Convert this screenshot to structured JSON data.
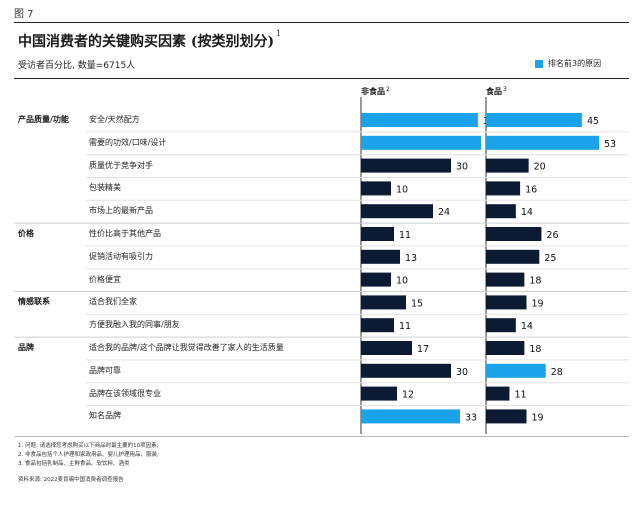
{
  "figure_label": "图 7",
  "title": "中国消费者的关键购买因素 (按类别划分)",
  "title_note": "1",
  "subtitle": "受访者百分比, 数量=6715人",
  "legend": {
    "label": "排名前3的原因",
    "color": "#1aa3e8"
  },
  "colors": {
    "highlight": "#1aa3e8",
    "default": "#0c1a33"
  },
  "chart_data": {
    "type": "bar",
    "orientation": "horizontal",
    "groups": [
      {
        "name": "产品质量/功能",
        "items": [
          {
            "label": "安全/天然配方",
            "nonfood": 39,
            "food": 45,
            "nonfood_top3": true,
            "food_top3": true
          },
          {
            "label": "需要的功效/口味/设计",
            "nonfood": 40,
            "food": 53,
            "nonfood_top3": true,
            "food_top3": true
          },
          {
            "label": "质量优于竞争对手",
            "nonfood": 30,
            "food": 20,
            "nonfood_top3": false,
            "food_top3": false
          },
          {
            "label": "包装精美",
            "nonfood": 10,
            "food": 16,
            "nonfood_top3": false,
            "food_top3": false
          },
          {
            "label": "市场上的最新产品",
            "nonfood": 24,
            "food": 14,
            "nonfood_top3": false,
            "food_top3": false
          }
        ]
      },
      {
        "name": "价格",
        "items": [
          {
            "label": "性价比高于其他产品",
            "nonfood": 11,
            "food": 26,
            "nonfood_top3": false,
            "food_top3": false
          },
          {
            "label": "促销活动有吸引力",
            "nonfood": 13,
            "food": 25,
            "nonfood_top3": false,
            "food_top3": false
          },
          {
            "label": "价格便宜",
            "nonfood": 10,
            "food": 18,
            "nonfood_top3": false,
            "food_top3": false
          }
        ]
      },
      {
        "name": "情感联系",
        "items": [
          {
            "label": "适合我们全家",
            "nonfood": 15,
            "food": 19,
            "nonfood_top3": false,
            "food_top3": false
          },
          {
            "label": "方便我融入我的同事/朋友",
            "nonfood": 11,
            "food": 14,
            "nonfood_top3": false,
            "food_top3": false
          }
        ]
      },
      {
        "name": "品牌",
        "items": [
          {
            "label": "适合我的品牌/这个品牌让我觉得改善了家人的生活质量",
            "nonfood": 17,
            "food": 18,
            "nonfood_top3": false,
            "food_top3": false
          },
          {
            "label": "品牌可靠",
            "nonfood": 30,
            "food": 28,
            "nonfood_top3": false,
            "food_top3": true
          },
          {
            "label": "品牌在该领域很专业",
            "nonfood": 12,
            "food": 11,
            "nonfood_top3": false,
            "food_top3": false
          },
          {
            "label": "知名品牌",
            "nonfood": 33,
            "food": 19,
            "nonfood_top3": true,
            "food_top3": false
          }
        ]
      }
    ],
    "series": [
      {
        "key": "nonfood",
        "name": "非食品",
        "note": "2"
      },
      {
        "key": "food",
        "name": "食品",
        "note": "3"
      }
    ]
  },
  "footnotes": [
    "1. 问题: 请选择您考虑购买以下商品时最主要的10项因素;",
    "2. 非食品包括个人护理和家政用品、婴儿护理用品、服装;",
    "3. 食品包括乳制品、主鲜食品、软饮料、酒类"
  ],
  "source": "资料来源: 2022麦肯锡中国消费者调查报告"
}
